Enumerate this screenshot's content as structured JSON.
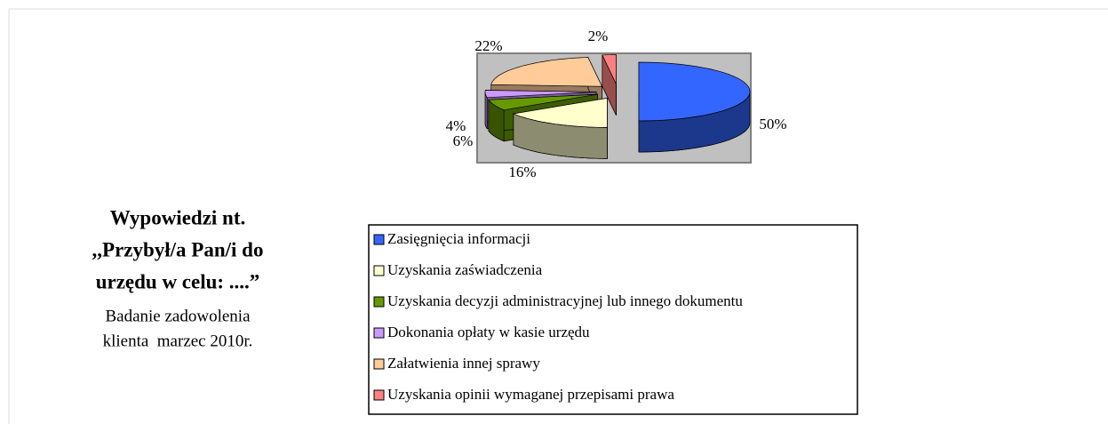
{
  "chart_data": {
    "type": "pie3d",
    "title": [
      "Wypowiedzi nt.",
      ",,Przybył/a Pan/i do",
      "urzędu w celu: ....”"
    ],
    "subtitle": [
      "Badanie zadowolenia",
      "klienta  marzec 2010r."
    ],
    "categories": [
      "Zasięgnięcia informacji",
      "Uzyskania zaświadczenia",
      "Uzyskania decyzji administracyjnej lub innego dokumentu",
      "Dokonania opłaty w kasie urzędu",
      "Załatwienia innej sprawy",
      "Uzyskania opinii wymaganej przepisami prawa"
    ],
    "values": [
      50,
      16,
      6,
      4,
      22,
      2
    ],
    "value_labels": [
      "50%",
      "16%",
      "6%",
      "4%",
      "22%",
      "2%"
    ],
    "colors": [
      "#3366ff",
      "#ffffcc",
      "#669900",
      "#cc99ff",
      "#ffcc99",
      "#ff8080"
    ]
  }
}
